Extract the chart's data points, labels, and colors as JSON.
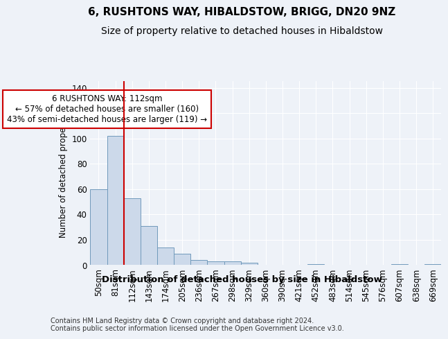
{
  "title": "6, RUSHTONS WAY, HIBALDSTOW, BRIGG, DN20 9NZ",
  "subtitle": "Size of property relative to detached houses in Hibaldstow",
  "xlabel": "Distribution of detached houses by size in Hibaldstow",
  "ylabel": "Number of detached properties",
  "categories": [
    "50sqm",
    "81sqm",
    "112sqm",
    "143sqm",
    "174sqm",
    "205sqm",
    "236sqm",
    "267sqm",
    "298sqm",
    "329sqm",
    "360sqm",
    "390sqm",
    "421sqm",
    "452sqm",
    "483sqm",
    "514sqm",
    "545sqm",
    "576sqm",
    "607sqm",
    "638sqm",
    "669sqm"
  ],
  "values": [
    60,
    102,
    53,
    31,
    14,
    9,
    4,
    3,
    3,
    2,
    0,
    0,
    0,
    1,
    0,
    0,
    0,
    0,
    1,
    0,
    1
  ],
  "bar_color": "#ccd9ea",
  "bar_edge_color": "#7099bb",
  "vline_x": 2,
  "vline_color": "#cc0000",
  "annotation_text": "6 RUSHTONS WAY: 112sqm\n← 57% of detached houses are smaller (160)\n43% of semi-detached houses are larger (119) →",
  "annotation_box_color": "#ffffff",
  "annotation_box_edge": "#cc0000",
  "ylim": [
    0,
    145
  ],
  "yticks": [
    0,
    20,
    40,
    60,
    80,
    100,
    120,
    140
  ],
  "background_color": "#eef2f8",
  "grid_color": "#ffffff",
  "footer": "Contains HM Land Registry data © Crown copyright and database right 2024.\nContains public sector information licensed under the Open Government Licence v3.0.",
  "title_fontsize": 11,
  "subtitle_fontsize": 10,
  "xlabel_fontsize": 9.5,
  "ylabel_fontsize": 8.5,
  "annotation_fontsize": 8.5,
  "tick_fontsize": 8.5,
  "footer_fontsize": 7
}
